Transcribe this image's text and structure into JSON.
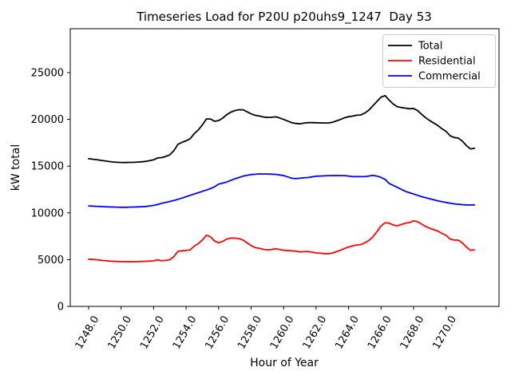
{
  "chart_data": {
    "type": "line",
    "title": "Timeseries Load for P20U p20uhs9_1247  Day 53",
    "xlabel": "Hour of Year",
    "ylabel": "kW total",
    "grid": false,
    "xlim": [
      1246.87,
      1273.26
    ],
    "ylim": [
      0,
      29690
    ],
    "xticks": [
      1248,
      1250,
      1252,
      1254,
      1256,
      1258,
      1260,
      1262,
      1264,
      1266,
      1268,
      1270
    ],
    "xtick_labels": [
      "1248.0",
      "1250.0",
      "1252.0",
      "1254.0",
      "1256.0",
      "1258.0",
      "1260.0",
      "1262.0",
      "1264.0",
      "1266.0",
      "1268.0",
      "1270.0"
    ],
    "yticks": [
      0,
      5000,
      10000,
      15000,
      20000,
      25000
    ],
    "ytick_labels": [
      "0",
      "5000",
      "10000",
      "15000",
      "20000",
      "25000"
    ],
    "x_start": 1248.0,
    "x_step": 0.25,
    "legend": {
      "position": "upper right"
    },
    "series": [
      {
        "name": "Total",
        "color": "#000000",
        "values": [
          15790,
          15740,
          15690,
          15610,
          15560,
          15490,
          15440,
          15410,
          15390,
          15380,
          15400,
          15400,
          15430,
          15460,
          15500,
          15580,
          15670,
          15880,
          15910,
          16030,
          16210,
          16650,
          17340,
          17540,
          17710,
          17930,
          18470,
          18860,
          19400,
          20040,
          20040,
          19790,
          19870,
          20130,
          20500,
          20770,
          20940,
          21030,
          21020,
          20810,
          20590,
          20430,
          20360,
          20260,
          20200,
          20220,
          20270,
          20150,
          19990,
          19820,
          19650,
          19560,
          19520,
          19600,
          19650,
          19650,
          19640,
          19620,
          19610,
          19610,
          19685,
          19840,
          19985,
          20170,
          20290,
          20350,
          20440,
          20470,
          20670,
          20990,
          21455,
          21930,
          22390,
          22530,
          22050,
          21640,
          21350,
          21265,
          21200,
          21130,
          21170,
          20925,
          20535,
          20170,
          19860,
          19595,
          19330,
          18995,
          18710,
          18240,
          18065,
          18000,
          17680,
          17200,
          16840,
          16900
        ]
      },
      {
        "name": "Residential",
        "color": "#ff0000",
        "values": [
          5050,
          5020,
          4990,
          4930,
          4900,
          4850,
          4820,
          4800,
          4790,
          4780,
          4790,
          4780,
          4790,
          4800,
          4820,
          4840,
          4870,
          4980,
          4890,
          4910,
          4990,
          5320,
          5890,
          5950,
          5980,
          6050,
          6450,
          6700,
          7100,
          7600,
          7450,
          7000,
          6800,
          6950,
          7200,
          7300,
          7300,
          7250,
          7100,
          6800,
          6500,
          6300,
          6200,
          6100,
          6050,
          6080,
          6150,
          6100,
          6000,
          5970,
          5950,
          5900,
          5820,
          5850,
          5870,
          5800,
          5720,
          5680,
          5650,
          5630,
          5700,
          5850,
          6000,
          6190,
          6350,
          6480,
          6560,
          6600,
          6800,
          7050,
          7450,
          8000,
          8600,
          8950,
          8900,
          8700,
          8620,
          8750,
          8900,
          8970,
          9150,
          9050,
          8800,
          8550,
          8350,
          8200,
          8050,
          7800,
          7600,
          7200,
          7100,
          7080,
          6800,
          6350,
          6000,
          6050
        ]
      },
      {
        "name": "Commercial",
        "color": "#0000ff",
        "values": [
          10740,
          10720,
          10700,
          10680,
          10660,
          10640,
          10620,
          10610,
          10600,
          10600,
          10610,
          10620,
          10640,
          10660,
          10680,
          10740,
          10800,
          10900,
          11020,
          11120,
          11220,
          11330,
          11450,
          11590,
          11730,
          11880,
          12020,
          12160,
          12300,
          12440,
          12590,
          12790,
          13070,
          13180,
          13300,
          13470,
          13640,
          13780,
          13920,
          14010,
          14090,
          14130,
          14160,
          14160,
          14150,
          14140,
          14120,
          14050,
          13990,
          13850,
          13700,
          13660,
          13700,
          13750,
          13780,
          13850,
          13920,
          13940,
          13960,
          13980,
          13985,
          13990,
          13985,
          13980,
          13940,
          13870,
          13880,
          13870,
          13870,
          13940,
          14005,
          13930,
          13790,
          13580,
          13150,
          12940,
          12730,
          12515,
          12300,
          12160,
          12020,
          11875,
          11735,
          11620,
          11510,
          11395,
          11280,
          11195,
          11110,
          11040,
          10965,
          10920,
          10880,
          10850,
          10840,
          10850
        ]
      }
    ]
  }
}
